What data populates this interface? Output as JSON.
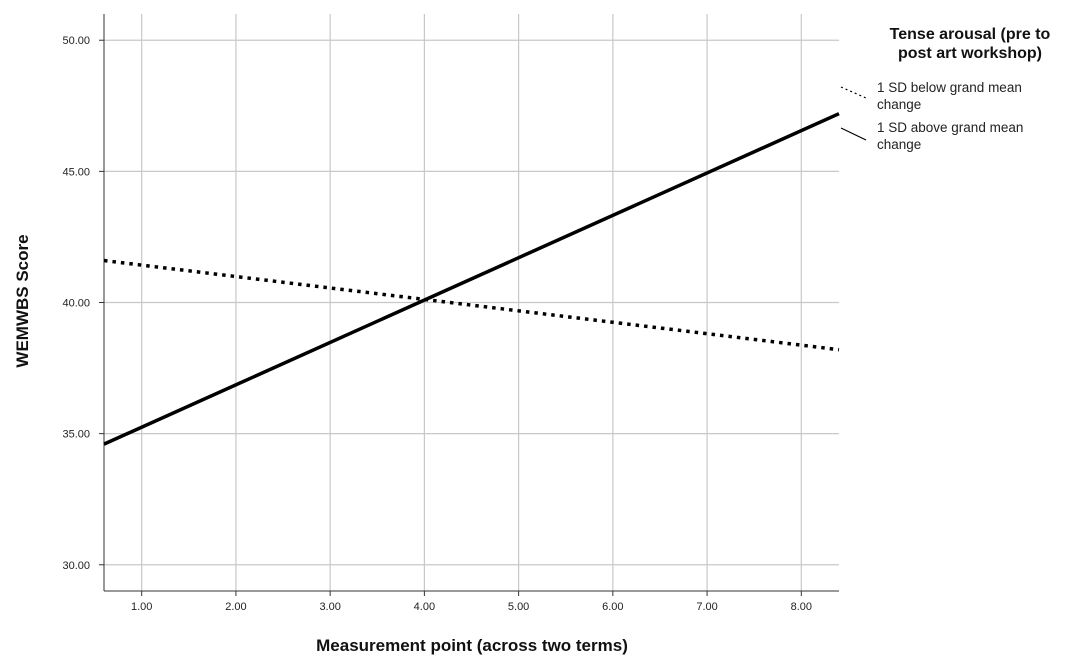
{
  "chart_data": {
    "type": "line",
    "xlabel": "Measurement point (across two terms)",
    "ylabel": "WEMWBS Score",
    "xlim": [
      0.6,
      8.4
    ],
    "ylim": [
      29.0,
      51.0
    ],
    "x_ticks": [
      1.0,
      2.0,
      3.0,
      4.0,
      5.0,
      6.0,
      7.0,
      8.0
    ],
    "x_tick_labels": [
      "1.00",
      "2.00",
      "3.00",
      "4.00",
      "5.00",
      "6.00",
      "7.00",
      "8.00"
    ],
    "y_ticks": [
      30.0,
      35.0,
      40.0,
      45.0,
      50.0
    ],
    "y_tick_labels": [
      "30.00",
      "35.00",
      "40.00",
      "45.00",
      "50.00"
    ],
    "grid": true,
    "legend": {
      "placement": "top-right",
      "title_lines": [
        "Tense arousal (pre to",
        "post art workshop)"
      ]
    },
    "series": [
      {
        "name": "1 SD below grand mean change",
        "label_lines": [
          "1 SD below grand mean",
          "change"
        ],
        "style": "dotted",
        "color": "#000000",
        "x": [
          0.6,
          8.4
        ],
        "y": [
          41.6,
          38.2
        ]
      },
      {
        "name": "1 SD above grand mean change",
        "label_lines": [
          "1 SD above grand mean",
          "change"
        ],
        "style": "solid",
        "color": "#000000",
        "x": [
          0.6,
          8.4
        ],
        "y": [
          34.6,
          47.2
        ]
      }
    ]
  }
}
